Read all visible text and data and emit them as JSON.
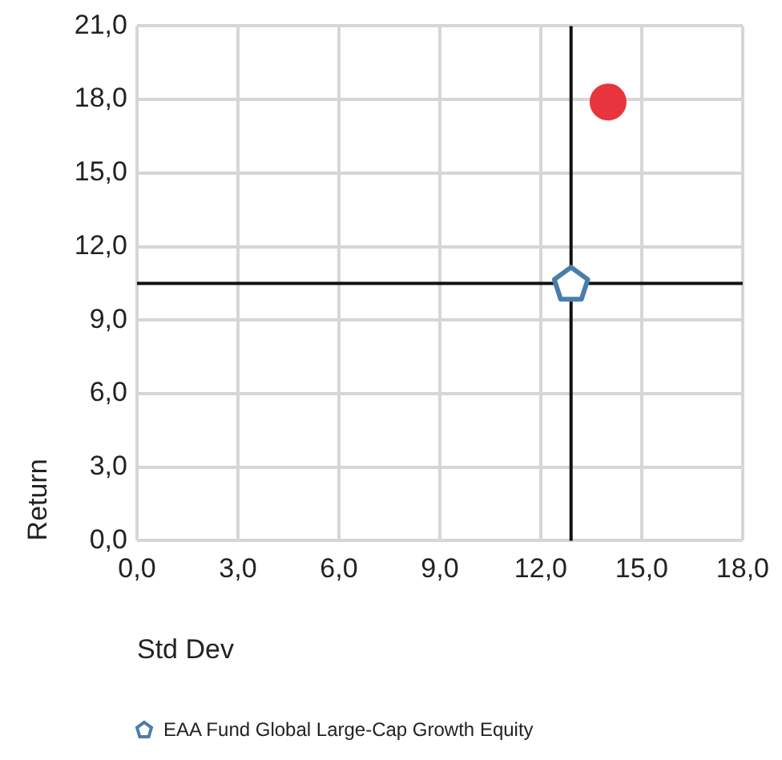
{
  "chart_data": {
    "type": "scatter",
    "xlabel": "Std Dev",
    "ylabel": "Return",
    "xlim": [
      0,
      18
    ],
    "ylim": [
      0,
      21
    ],
    "xticks": [
      {
        "value": 0,
        "label": "0,0"
      },
      {
        "value": 3,
        "label": "3,0"
      },
      {
        "value": 6,
        "label": "6,0"
      },
      {
        "value": 9,
        "label": "9,0"
      },
      {
        "value": 12,
        "label": "12,0"
      },
      {
        "value": 15,
        "label": "15,0"
      },
      {
        "value": 18,
        "label": "18,0"
      }
    ],
    "yticks": [
      {
        "value": 0,
        "label": "0,0"
      },
      {
        "value": 3,
        "label": "3,0"
      },
      {
        "value": 6,
        "label": "6,0"
      },
      {
        "value": 9,
        "label": "9,0"
      },
      {
        "value": 12,
        "label": "12,0"
      },
      {
        "value": 15,
        "label": "15,0"
      },
      {
        "value": 18,
        "label": "18,0"
      },
      {
        "value": 21,
        "label": "21,0"
      }
    ],
    "grid": true,
    "legend": "bottom",
    "series": [
      {
        "color": "#e8343c",
        "marker": "circle",
        "x": [
          14.0
        ],
        "values": [
          17.9
        ]
      },
      {
        "name": "EAA Fund Global Large-Cap Growth Equity",
        "color": "#4a7eaa",
        "x": [
          12.9
        ],
        "values": [
          10.5
        ]
      }
    ],
    "ref_lines": [
      {
        "axis": "x",
        "value": 12.9,
        "color": "#111111"
      },
      {
        "axis": "y",
        "value": 10.5,
        "color": "#111111"
      }
    ]
  }
}
